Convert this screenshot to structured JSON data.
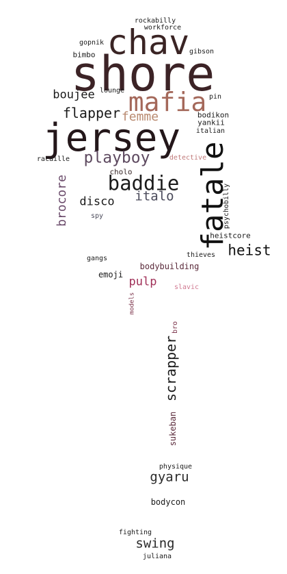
{
  "words": [
    {
      "id": "rockabilly",
      "text": "rockabilly",
      "color": "#1a1a1a"
    },
    {
      "id": "workforce",
      "text": "workforce",
      "color": "#1a1a1a"
    },
    {
      "id": "gopnik",
      "text": "gopnik",
      "color": "#1a1a1a"
    },
    {
      "id": "chav",
      "text": "chav",
      "color": "#3a2424"
    },
    {
      "id": "gibson",
      "text": "gibson",
      "color": "#1a1a1a"
    },
    {
      "id": "bimbo",
      "text": "bimbo",
      "color": "#1a1a1a"
    },
    {
      "id": "shore",
      "text": "shore",
      "color": "#3c2326"
    },
    {
      "id": "lounge",
      "text": "lounge",
      "color": "#1a1a1a"
    },
    {
      "id": "boujee",
      "text": "boujee",
      "color": "#1a1a1a"
    },
    {
      "id": "mafia",
      "text": "mafia",
      "color": "#a4685a"
    },
    {
      "id": "pin",
      "text": "pin",
      "color": "#1a1a1a"
    },
    {
      "id": "flapper",
      "text": "flapper",
      "color": "#1a1a1a"
    },
    {
      "id": "femme",
      "text": "femme",
      "color": "#b98a70"
    },
    {
      "id": "bodikon",
      "text": "bodikon",
      "color": "#1a1a1a"
    },
    {
      "id": "yankii",
      "text": "yankii",
      "color": "#1a1a1a"
    },
    {
      "id": "jersey",
      "text": "jersey",
      "color": "#24171a"
    },
    {
      "id": "italian",
      "text": "italian",
      "color": "#1a1a1a"
    },
    {
      "id": "fatale",
      "text": "fatale",
      "color": "#111111"
    },
    {
      "id": "racaille",
      "text": "racaille",
      "color": "#1a1a1a"
    },
    {
      "id": "playboy",
      "text": "playboy",
      "color": "#5e4a60"
    },
    {
      "id": "detective",
      "text": "detective",
      "color": "#c07a7a"
    },
    {
      "id": "cholo",
      "text": "cholo",
      "color": "#3a2a2a"
    },
    {
      "id": "brocore",
      "text": "brocore",
      "color": "#6a4a6a"
    },
    {
      "id": "baddie",
      "text": "baddie",
      "color": "#1a1a1a"
    },
    {
      "id": "psychobilly",
      "text": "psychobilly",
      "color": "#1a1a1a"
    },
    {
      "id": "italo",
      "text": "italo",
      "color": "#4a4a5a"
    },
    {
      "id": "disco",
      "text": "disco",
      "color": "#1a1a1a"
    },
    {
      "id": "spy",
      "text": "spy",
      "color": "#4a4a5a"
    },
    {
      "id": "heistcore",
      "text": "heistcore",
      "color": "#1a1a1a"
    },
    {
      "id": "heist",
      "text": "heist",
      "color": "#111111"
    },
    {
      "id": "thieves",
      "text": "thieves",
      "color": "#1a1a1a"
    },
    {
      "id": "gangs",
      "text": "gangs",
      "color": "#1a1a1a"
    },
    {
      "id": "bodybuilding",
      "text": "bodybuilding",
      "color": "#5a2a3a"
    },
    {
      "id": "emoji",
      "text": "emoji",
      "color": "#1a1a1a"
    },
    {
      "id": "pulp",
      "text": "pulp",
      "color": "#a03058"
    },
    {
      "id": "slavic",
      "text": "slavic",
      "color": "#d07890"
    },
    {
      "id": "models",
      "text": "models",
      "color": "#7a3048"
    },
    {
      "id": "bro",
      "text": "bro",
      "color": "#7a3048"
    },
    {
      "id": "scrapper",
      "text": "scrapper",
      "color": "#1a1a1a"
    },
    {
      "id": "sukeban",
      "text": "sukeban",
      "color": "#5a2a3a"
    },
    {
      "id": "physique",
      "text": "physique",
      "color": "#1a1a1a"
    },
    {
      "id": "gyaru",
      "text": "gyaru",
      "color": "#2a2a2a"
    },
    {
      "id": "bodycon",
      "text": "bodycon",
      "color": "#1a1a1a"
    },
    {
      "id": "fighting",
      "text": "fighting",
      "color": "#1a1a1a"
    },
    {
      "id": "swing",
      "text": "swing",
      "color": "#2a2a2a"
    },
    {
      "id": "juliana",
      "text": "juliana",
      "color": "#1a1a1a"
    }
  ]
}
